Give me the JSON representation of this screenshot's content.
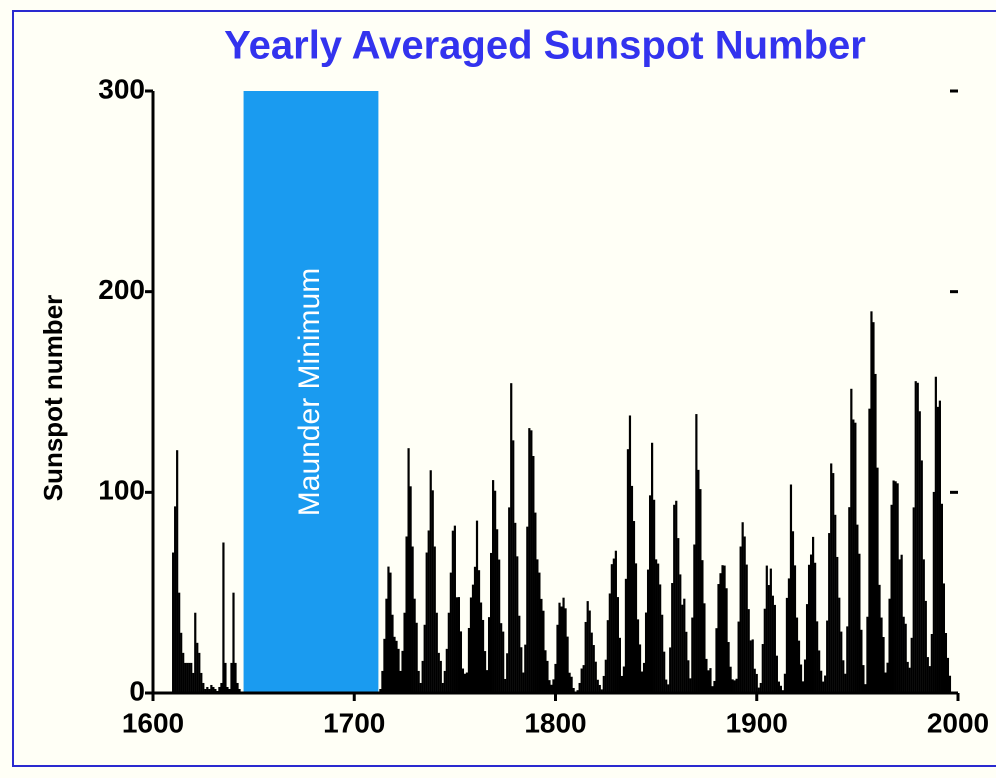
{
  "chart_data": {
    "type": "bar",
    "title": "Yearly Averaged Sunspot Number",
    "y_label": "Sunspot number",
    "x": [
      1610,
      1611,
      1612,
      1613,
      1614,
      1615,
      1616,
      1617,
      1618,
      1619,
      1620,
      1621,
      1622,
      1623,
      1624,
      1625,
      1626,
      1627,
      1628,
      1629,
      1630,
      1631,
      1632,
      1633,
      1634,
      1635,
      1636,
      1637,
      1638,
      1639,
      1640,
      1641,
      1642,
      1643,
      1712,
      1713,
      1714,
      1715,
      1716,
      1717,
      1718,
      1719,
      1720,
      1721,
      1722,
      1723,
      1724,
      1725,
      1726,
      1727,
      1728,
      1729,
      1730,
      1731,
      1732,
      1733,
      1734,
      1735,
      1736,
      1737,
      1738,
      1739,
      1740,
      1741,
      1742,
      1743,
      1744,
      1745,
      1746,
      1747,
      1748,
      1749,
      1750,
      1751,
      1752,
      1753,
      1754,
      1755,
      1756,
      1757,
      1758,
      1759,
      1760,
      1761,
      1762,
      1763,
      1764,
      1765,
      1766,
      1767,
      1768,
      1769,
      1770,
      1771,
      1772,
      1773,
      1774,
      1775,
      1776,
      1777,
      1778,
      1779,
      1780,
      1781,
      1782,
      1783,
      1784,
      1785,
      1786,
      1787,
      1788,
      1789,
      1790,
      1791,
      1792,
      1793,
      1794,
      1795,
      1796,
      1797,
      1798,
      1799,
      1800,
      1801,
      1802,
      1803,
      1804,
      1805,
      1806,
      1807,
      1808,
      1809,
      1810,
      1811,
      1812,
      1813,
      1814,
      1815,
      1816,
      1817,
      1818,
      1819,
      1820,
      1821,
      1822,
      1823,
      1824,
      1825,
      1826,
      1827,
      1828,
      1829,
      1830,
      1831,
      1832,
      1833,
      1834,
      1835,
      1836,
      1837,
      1838,
      1839,
      1840,
      1841,
      1842,
      1843,
      1844,
      1845,
      1846,
      1847,
      1848,
      1849,
      1850,
      1851,
      1852,
      1853,
      1854,
      1855,
      1856,
      1857,
      1858,
      1859,
      1860,
      1861,
      1862,
      1863,
      1864,
      1865,
      1866,
      1867,
      1868,
      1869,
      1870,
      1871,
      1872,
      1873,
      1874,
      1875,
      1876,
      1877,
      1878,
      1879,
      1880,
      1881,
      1882,
      1883,
      1884,
      1885,
      1886,
      1887,
      1888,
      1889,
      1890,
      1891,
      1892,
      1893,
      1894,
      1895,
      1896,
      1897,
      1898,
      1899,
      1900,
      1901,
      1902,
      1903,
      1904,
      1905,
      1906,
      1907,
      1908,
      1909,
      1910,
      1911,
      1912,
      1913,
      1914,
      1915,
      1916,
      1917,
      1918,
      1919,
      1920,
      1921,
      1922,
      1923,
      1924,
      1925,
      1926,
      1927,
      1928,
      1929,
      1930,
      1931,
      1932,
      1933,
      1934,
      1935,
      1936,
      1937,
      1938,
      1939,
      1940,
      1941,
      1942,
      1943,
      1944,
      1945,
      1946,
      1947,
      1948,
      1949,
      1950,
      1951,
      1952,
      1953,
      1954,
      1955,
      1956,
      1957,
      1958,
      1959,
      1960,
      1961,
      1962,
      1963,
      1964,
      1965,
      1966,
      1967,
      1968,
      1969,
      1970,
      1971,
      1972,
      1973,
      1974,
      1975,
      1976,
      1977,
      1978,
      1979,
      1980,
      1981,
      1982,
      1983,
      1984,
      1985,
      1986,
      1987,
      1988,
      1989,
      1990,
      1991,
      1992,
      1993,
      1994,
      1995,
      1996
    ],
    "values": [
      70,
      93,
      121,
      50,
      30,
      20,
      15,
      15,
      15,
      15,
      10,
      40,
      25,
      20,
      10,
      5,
      2,
      3,
      2,
      4,
      3,
      2,
      1,
      3,
      5,
      75,
      15,
      3,
      2,
      15,
      50,
      15,
      5,
      2,
      0,
      2,
      11,
      27,
      47,
      63,
      60,
      39,
      28,
      26,
      22,
      11,
      21,
      40,
      78,
      122,
      103,
      73,
      47,
      35,
      11,
      5,
      16,
      34,
      70,
      81,
      111,
      101,
      73,
      40,
      20,
      16,
      5,
      11,
      22,
      40,
      60,
      80.9,
      83.4,
      47.7,
      47.8,
      30.7,
      12.2,
      9.6,
      10.2,
      32.4,
      47.6,
      54.0,
      62.9,
      85.9,
      61.2,
      45.1,
      36.4,
      20.9,
      11.4,
      37.8,
      69.8,
      106.1,
      100.8,
      81.6,
      66.5,
      34.8,
      30.6,
      7.0,
      19.8,
      92.5,
      154.4,
      125.9,
      84.8,
      68.1,
      38.5,
      22.8,
      10.2,
      24.1,
      82.9,
      132.0,
      130.9,
      118.1,
      89.9,
      66.6,
      60.0,
      46.9,
      41.0,
      21.3,
      16.0,
      6.4,
      4.1,
      6.8,
      14.5,
      34.0,
      45.0,
      43.1,
      47.5,
      42.2,
      28.1,
      10.1,
      8.1,
      2.5,
      0.0,
      1.4,
      5.0,
      12.2,
      13.9,
      35.4,
      45.8,
      41.1,
      30.1,
      23.9,
      15.6,
      6.6,
      4.0,
      1.8,
      8.5,
      16.6,
      36.3,
      49.6,
      64.2,
      67.0,
      70.9,
      47.8,
      27.5,
      8.5,
      13.2,
      56.9,
      121.5,
      138.3,
      103.2,
      85.7,
      64.6,
      36.7,
      24.2,
      10.7,
      15.0,
      40.1,
      61.5,
      98.5,
      124.7,
      96.3,
      66.6,
      64.5,
      54.1,
      39.0,
      20.6,
      6.7,
      4.3,
      22.7,
      54.8,
      93.8,
      95.8,
      77.2,
      59.1,
      44.0,
      47.0,
      30.5,
      16.3,
      7.3,
      37.6,
      74.0,
      139.0,
      111.2,
      101.6,
      66.2,
      44.7,
      17.0,
      11.3,
      12.4,
      3.4,
      6.0,
      32.3,
      54.3,
      59.7,
      63.7,
      63.5,
      52.2,
      25.4,
      13.1,
      6.8,
      6.3,
      7.1,
      35.6,
      73.0,
      85.1,
      78.0,
      64.0,
      41.8,
      26.2,
      26.7,
      12.1,
      9.5,
      2.7,
      5.0,
      24.4,
      42.0,
      63.5,
      53.8,
      62.0,
      48.5,
      43.9,
      18.6,
      5.7,
      3.6,
      1.4,
      9.6,
      47.4,
      57.1,
      103.9,
      80.6,
      63.6,
      37.6,
      26.1,
      14.2,
      5.8,
      16.7,
      44.3,
      63.9,
      69.0,
      77.8,
      64.9,
      35.7,
      21.2,
      11.1,
      5.7,
      8.7,
      36.1,
      79.7,
      114.4,
      109.6,
      88.8,
      67.8,
      47.5,
      30.6,
      16.3,
      9.6,
      33.2,
      92.6,
      151.6,
      136.3,
      134.7,
      83.9,
      69.4,
      31.5,
      13.9,
      4.4,
      38.0,
      141.7,
      190.2,
      184.8,
      159.0,
      112.3,
      53.9,
      37.6,
      27.9,
      10.2,
      15.1,
      47.0,
      93.8,
      105.9,
      105.5,
      104.5,
      66.6,
      68.9,
      38.0,
      34.5,
      15.5,
      12.6,
      27.5,
      92.5,
      155.4,
      154.6,
      140.4,
      115.9,
      66.6,
      45.9,
      17.9,
      13.4,
      29.4,
      100.2,
      157.6,
      142.6,
      145.7,
      94.3,
      54.6,
      29.9,
      17.5,
      8.6
    ],
    "color": "#000000",
    "band": {
      "label": "Maunder Minimum",
      "x": [
        1645,
        1712
      ],
      "color": "#1a9bf0"
    },
    "xlim": [
      1600,
      2000
    ],
    "xticks": [
      1600,
      1700,
      1800,
      1900,
      2000
    ],
    "ylim": [
      0,
      300
    ],
    "yticks": [
      0,
      100,
      200,
      300
    ]
  }
}
